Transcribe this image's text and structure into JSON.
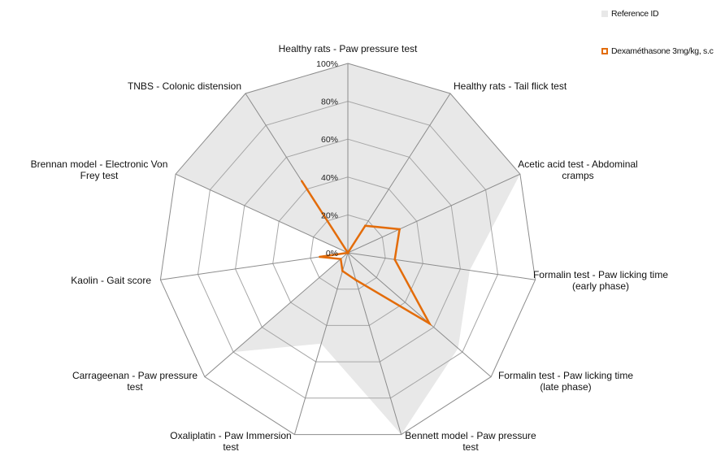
{
  "chart_data": {
    "type": "radar",
    "categories": [
      "Healthy rats - Paw pressure test",
      "Healthy rats - Tail flick test",
      "Acetic acid test - Abdominal cramps",
      "Formalin test - Paw licking time (early phase)",
      "Formalin test - Paw licking time (late phase)",
      "Bennett model - Paw pressure test",
      "Oxaliplatin - Paw Immersion test",
      "Carrageenan - Paw pressure test",
      "Kaolin - Gait score",
      "Brennan model - Electronic Von Frey test",
      "TNBS - Colonic distension"
    ],
    "axis": {
      "min": 0,
      "max": 100,
      "step": 20,
      "tick_labels": [
        "0%",
        "20%",
        "40%",
        "60%",
        "80%",
        "100%"
      ]
    },
    "grid": true,
    "legend_position": "top-right",
    "series": [
      {
        "name": "Reference ID",
        "style": "filled-area",
        "color": "#e8e8e8",
        "values": [
          100,
          100,
          100,
          65,
          77,
          100,
          50,
          80,
          0,
          100,
          100
        ]
      },
      {
        "name": "Dexaméthasone 3mg/kg, s.c",
        "style": "line",
        "color": "#e36c0a",
        "values": [
          0,
          17,
          30,
          25,
          57,
          15,
          10,
          5,
          15,
          0,
          45
        ]
      }
    ]
  }
}
